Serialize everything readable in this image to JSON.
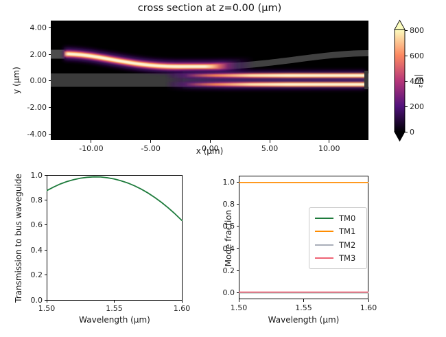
{
  "figure": {
    "background": "#ffffff"
  },
  "chart_data": [
    {
      "type": "heatmap",
      "title": "cross section at z=0.00 (μm)",
      "xlabel": "x (μm)",
      "ylabel": "y (μm)",
      "xlim": [
        -13.4,
        13.3
      ],
      "ylim": [
        -4.45,
        4.55
      ],
      "xticks": [
        {
          "v": -10,
          "label": "-10.00"
        },
        {
          "v": -5,
          "label": "-5.00"
        },
        {
          "v": 0,
          "label": "0.00"
        },
        {
          "v": 5,
          "label": "5.00"
        },
        {
          "v": 10,
          "label": "10.00"
        }
      ],
      "yticks": [
        {
          "v": 4,
          "label": "4.00"
        },
        {
          "v": 2,
          "label": "2.00"
        },
        {
          "v": 0,
          "label": "0.00"
        },
        {
          "v": -2,
          "label": "-2.00"
        },
        {
          "v": -4,
          "label": "-4.00"
        }
      ],
      "colormap": "magma",
      "colorbar": {
        "label": "|E|²",
        "vmin": 0,
        "vmax": 810,
        "extend": "both",
        "ticks": [
          {
            "v": 0,
            "label": "0"
          },
          {
            "v": 200,
            "label": "200"
          },
          {
            "v": 400,
            "label": "400"
          },
          {
            "v": 600,
            "label": "600"
          },
          {
            "v": 800,
            "label": "800"
          }
        ]
      },
      "features": [
        "bright input field follows top waveguide from (x=-13, y=2.1) S-bending down to y=1.1 near x=-3",
        "field couples into bus waveguide (|y|<0.5): two bright horizontal lobes at y=+0.4 and y=-0.4 for x>0 reaching max intensity near x=13",
        "top waveguide continues with little residual power, S-bending back up to y=2.1 at x=13",
        "bus waveguide drawn as faint gray band across full width"
      ]
    },
    {
      "type": "line",
      "xlabel": "Wavelength (μm)",
      "ylabel": "Transmission to bus waveguide",
      "xlim": [
        1.5,
        1.6
      ],
      "ylim": [
        0.0,
        1.0
      ],
      "xticks": [
        {
          "v": 1.5,
          "label": "1.50"
        },
        {
          "v": 1.55,
          "label": "1.55"
        },
        {
          "v": 1.6,
          "label": "1.60"
        }
      ],
      "yticks": [
        {
          "v": 0.0,
          "label": "0.0"
        },
        {
          "v": 0.2,
          "label": "0.2"
        },
        {
          "v": 0.4,
          "label": "0.4"
        },
        {
          "v": 0.6,
          "label": "0.6"
        },
        {
          "v": 0.8,
          "label": "0.8"
        },
        {
          "v": 1.0,
          "label": "1.0"
        }
      ],
      "series": [
        {
          "name": "transmission",
          "color": "#1e7b3c",
          "x": [
            1.5,
            1.505,
            1.51,
            1.515,
            1.52,
            1.525,
            1.53,
            1.535,
            1.54,
            1.545,
            1.55,
            1.555,
            1.56,
            1.565,
            1.57,
            1.575,
            1.58,
            1.585,
            1.59,
            1.595,
            1.6
          ],
          "y": [
            0.875,
            0.903,
            0.928,
            0.948,
            0.963,
            0.975,
            0.982,
            0.985,
            0.984,
            0.978,
            0.968,
            0.954,
            0.936,
            0.914,
            0.887,
            0.856,
            0.82,
            0.781,
            0.737,
            0.689,
            0.637
          ]
        }
      ]
    },
    {
      "type": "line",
      "xlabel": "Wavelength (μm)",
      "ylabel": "Mode fraction",
      "xlim": [
        1.5,
        1.6
      ],
      "ylim": [
        -0.06,
        1.06
      ],
      "legend_position": "center right",
      "xticks": [
        {
          "v": 1.5,
          "label": "1.50"
        },
        {
          "v": 1.55,
          "label": "1.55"
        },
        {
          "v": 1.6,
          "label": "1.60"
        }
      ],
      "yticks": [
        {
          "v": 0.0,
          "label": "0.0"
        },
        {
          "v": 0.2,
          "label": "0.2"
        },
        {
          "v": 0.4,
          "label": "0.4"
        },
        {
          "v": 0.6,
          "label": "0.6"
        },
        {
          "v": 0.8,
          "label": "0.8"
        },
        {
          "v": 1.0,
          "label": "1.0"
        }
      ],
      "series": [
        {
          "name": "TM0",
          "color": "#1e7b3c",
          "x": [
            1.5,
            1.6
          ],
          "y": [
            0.0,
            0.0
          ]
        },
        {
          "name": "TM1",
          "color": "#ff8c00",
          "x": [
            1.5,
            1.6
          ],
          "y": [
            0.998,
            0.998
          ]
        },
        {
          "name": "TM2",
          "color": "#a9aeb9",
          "x": [
            1.5,
            1.6
          ],
          "y": [
            0.0,
            0.0
          ]
        },
        {
          "name": "TM3",
          "color": "#ee6374",
          "x": [
            1.5,
            1.6
          ],
          "y": [
            0.005,
            0.005
          ]
        }
      ]
    }
  ]
}
